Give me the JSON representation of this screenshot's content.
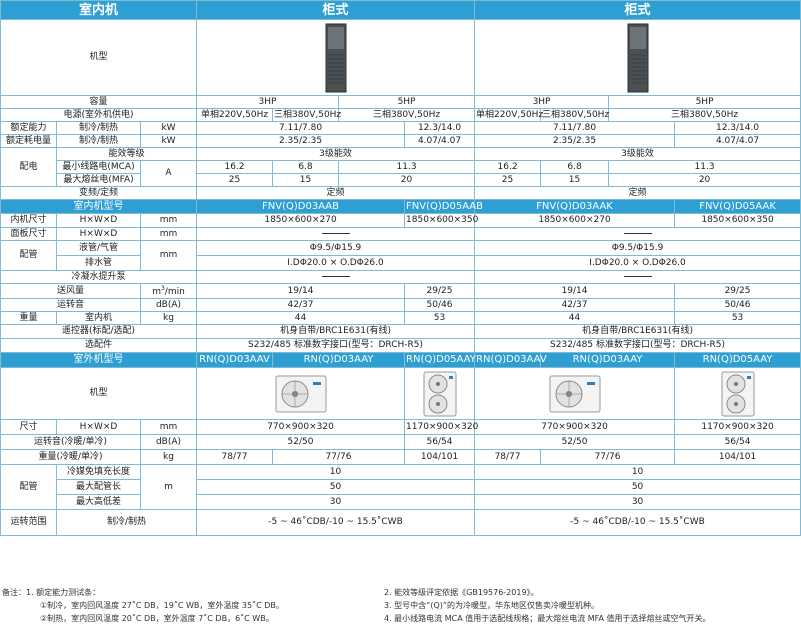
{
  "header": {
    "indoor_unit": "室内机",
    "cabinet_left": "柜式",
    "cabinet_right": "柜式"
  },
  "labels": {
    "model_image": "机型",
    "capacity": "容量",
    "power_supply": "电源(室外机供电)",
    "rated_capacity": "额定能力",
    "rated_power": "额定耗电量",
    "cool_heat": "制冷/制热",
    "kw": "kW",
    "energy_grade": "能效等级",
    "electric": "配电",
    "mca": "最小线路电(MCA)",
    "mfa": "最大熔丝电(MFA)",
    "amp": "A",
    "inverter": "变频/定频",
    "indoor_model": "室内机型号",
    "indoor_size": "内机尺寸",
    "panel_size": "面板尺寸",
    "hwd": "H×W×D",
    "mm": "mm",
    "piping": "配管",
    "liquid_gas": "液管/气管",
    "drain": "排水管",
    "pump": "冷凝水提升泵",
    "airflow": "送风量",
    "airflow_unit_m": "m",
    "airflow_unit_sup": "3",
    "airflow_unit_rest": "/min",
    "noise": "运转音",
    "db": "dB(A)",
    "weight": "重量",
    "indoor": "室内机",
    "kg": "kg",
    "remote": "遥控器(标配/选配)",
    "option": "选配件",
    "outdoor_model": "室外机型号",
    "outdoor_image": "机型",
    "size": "尺寸",
    "noise_out": "运转音(冷暖/单冷)",
    "weight_out": "重量(冷暖/单冷)",
    "charge_free": "冷媒免填充长度",
    "max_pipe": "最大配管长",
    "max_height": "最大高低差",
    "m": "m",
    "op_range": "运转范围"
  },
  "left": {
    "cap_3hp": "3HP",
    "cap_5hp": "5HP",
    "pwr_a": "单相220V,50Hz",
    "pwr_b": "三相380V,50Hz",
    "rc_3": "7.11/7.80",
    "rc_5": "12.3/14.0",
    "rp_3": "2.35/2.35",
    "rp_5": "4.07/4.07",
    "grade": "3级能效",
    "mca_a": "16.2",
    "mca_b": "6.8",
    "mca_c": "11.3",
    "mfa_a": "25",
    "mfa_b": "15",
    "mfa_c": "20",
    "inverter": "定频",
    "in_model_3": "FNV(Q)D03AAB",
    "in_model_5": "FNV(Q)D05AAB",
    "in_size_3": "1850×600×270",
    "in_size_5": "1850×600×350",
    "pipe": "Φ9.5/Φ15.9",
    "drain": "I.DΦ20.0 × O.DΦ26.0",
    "air_3": "19/14",
    "air_5": "29/25",
    "noise_3": "42/37",
    "noise_5": "50/46",
    "wt_3": "44",
    "wt_5": "53",
    "remote": "机身自带/BRC1E631(有线)",
    "option": "S232/485 标准数字接口(型号：DRCH-R5)",
    "out_model_a": "RN(Q)D03AAV",
    "out_model_b": "RN(Q)D03AAY",
    "out_model_c": "RN(Q)D05AAY",
    "out_size_3": "770×900×320",
    "out_size_5": "1170×900×320",
    "out_noise_3": "52/50",
    "out_noise_5": "56/54",
    "out_wt_a": "78/77",
    "out_wt_b": "77/76",
    "out_wt_c": "104/101",
    "charge": "10",
    "max_pipe": "50",
    "max_height": "30",
    "range": "-5 ~ 46˚CDB/-10 ~ 15.5˚CWB"
  },
  "right": {
    "cap_3hp": "3HP",
    "cap_5hp": "5HP",
    "pwr_a": "单相220V,50Hz",
    "pwr_b": "三相380V,50Hz",
    "rc_3": "7.11/7.80",
    "rc_5": "12.3/14.0",
    "rp_3": "2.35/2.35",
    "rp_5": "4.07/4.07",
    "grade": "3级能效",
    "mca_a": "16.2",
    "mca_b": "6.8",
    "mca_c": "11.3",
    "mfa_a": "25",
    "mfa_b": "15",
    "mfa_c": "20",
    "inverter": "定频",
    "in_model_3": "FNV(Q)D03AAK",
    "in_model_5": "FNV(Q)D05AAK",
    "in_size_3": "1850×600×270",
    "in_size_5": "1850×600×350",
    "pipe": "Φ9.5/Φ15.9",
    "drain": "I.DΦ20.0 × O.DΦ26.0",
    "air_3": "19/14",
    "air_5": "29/25",
    "noise_3": "42/37",
    "noise_5": "50/46",
    "wt_3": "44",
    "wt_5": "53",
    "remote": "机身自带/BRC1E631(有线)",
    "option": "S232/485 标准数字接口(型号：DRCH-R5)",
    "out_model_a": "RN(Q)D03AAV",
    "out_model_b": "RN(Q)D03AAY",
    "out_model_c": "RN(Q)D05AAY",
    "out_size_3": "770×900×320",
    "out_size_5": "1170×900×320",
    "out_noise_3": "52/50",
    "out_noise_5": "56/54",
    "out_wt_a": "78/77",
    "out_wt_b": "77/76",
    "out_wt_c": "104/101",
    "charge": "10",
    "max_pipe": "50",
    "max_height": "30",
    "range": "-5 ~ 46˚CDB/-10 ~ 15.5˚CWB"
  },
  "notes": {
    "head": "备注：1. 额定能力测试条：",
    "n1a": "①制冷，室内回风温度 27˚C DB，19˚C WB，室外温度 35˚C DB。",
    "n1b": "②制热，室内回风温度 20˚C DB，室外温度 7˚C DB，6˚C WB。",
    "n2": "2. 能效等级评定依据《GB19576-2019》。",
    "n3": "3. 型号中含“(Q)”的为冷暖型，华东地区仅售卖冷暖型机种。",
    "n4": "4. 最小线路电流 MCA 值用于选配线规格；最大熔丝电流 MFA 值用于选择熔丝或空气开关。"
  },
  "colors": {
    "band": "#2e9fd2",
    "border": "#7fbbd6"
  }
}
